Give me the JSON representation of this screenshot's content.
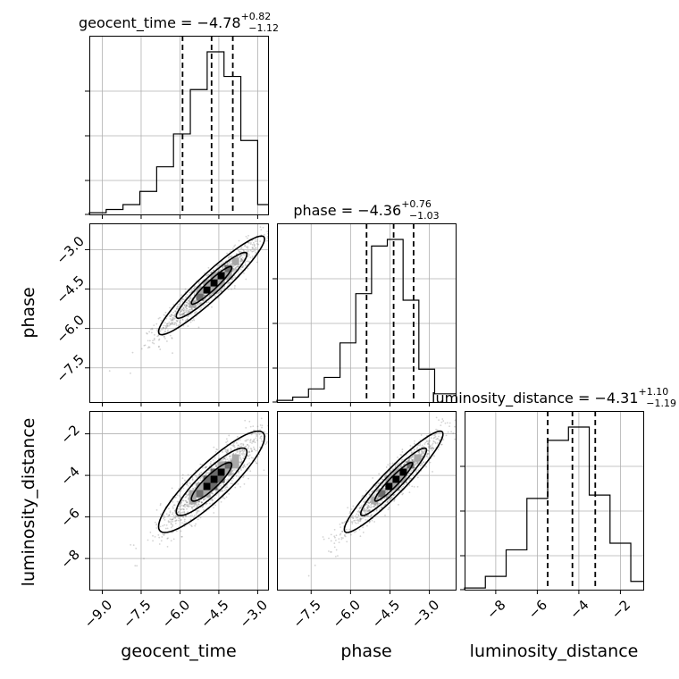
{
  "chart_data": {
    "type": "corner",
    "parameters": [
      "geocent_time",
      "phase",
      "luminosity_distance"
    ],
    "titles": [
      {
        "name": "geocent_time",
        "median": "−4.78",
        "plus": "+0.82",
        "minus": "−1.12"
      },
      {
        "name": "phase",
        "median": "−4.36",
        "plus": "+0.76",
        "minus": "−1.03"
      },
      {
        "name": "luminosity_distance",
        "median": "−4.31",
        "plus": "+1.10",
        "minus": "−1.19"
      }
    ],
    "ranges": [
      [
        -9.5,
        -2.6
      ],
      [
        -8.8,
        -2.0
      ],
      [
        -9.5,
        -0.9
      ]
    ],
    "ticks": [
      [
        -9.0,
        -7.5,
        -6.0,
        -4.5,
        -3.0
      ],
      [
        -7.5,
        -6.0,
        -4.5,
        -3.0
      ],
      [
        -8,
        -6,
        -4,
        -2
      ]
    ],
    "tick_labels": [
      [
        "−9.0",
        "−7.5",
        "−6.0",
        "−4.5",
        "−3.0"
      ],
      [
        "−7.5",
        "−6.0",
        "−4.5",
        "−3.0"
      ],
      [
        "−8",
        "−6",
        "−4",
        "−2"
      ]
    ],
    "quantiles": [
      [
        -5.9,
        -4.78,
        -3.96
      ],
      [
        -5.39,
        -4.36,
        -3.6
      ],
      [
        -5.5,
        -4.31,
        -3.21
      ]
    ],
    "histograms": [
      {
        "parameter": "geocent_time",
        "bin_edges": [
          -9.5,
          -8.85,
          -8.2,
          -7.55,
          -6.9,
          -6.25,
          -5.6,
          -4.95,
          -4.3,
          -3.65,
          -3.0,
          -2.6
        ],
        "counts": [
          0.01,
          0.03,
          0.06,
          0.14,
          0.29,
          0.49,
          0.76,
          0.99,
          0.84,
          0.45,
          0.06
        ]
      },
      {
        "parameter": "phase",
        "bin_edges": [
          -8.8,
          -8.2,
          -7.6,
          -7.0,
          -6.4,
          -5.8,
          -5.2,
          -4.6,
          -4.0,
          -3.4,
          -2.8,
          -2.0
        ],
        "counts": [
          0.01,
          0.03,
          0.08,
          0.15,
          0.36,
          0.66,
          0.95,
          0.99,
          0.62,
          0.2,
          0.05
        ]
      },
      {
        "parameter": "luminosity_distance",
        "bin_edges": [
          -9.5,
          -8.5,
          -7.5,
          -6.5,
          -5.5,
          -4.5,
          -3.5,
          -2.5,
          -1.5,
          -0.9
        ],
        "counts": [
          0.01,
          0.08,
          0.24,
          0.55,
          0.9,
          0.98,
          0.57,
          0.28,
          0.05
        ]
      }
    ],
    "scatter_2d": [
      {
        "x": "geocent_time",
        "y": "phase",
        "center": [
          -4.78,
          -4.36
        ],
        "cov": [
          [
            0.95,
            0.82
          ],
          [
            0.82,
            0.8
          ]
        ],
        "n_points": 1300
      },
      {
        "x": "geocent_time",
        "y": "luminosity_distance",
        "center": [
          -4.78,
          -4.31
        ],
        "cov": [
          [
            0.95,
            1.0
          ],
          [
            1.0,
            1.35
          ]
        ],
        "n_points": 1300
      },
      {
        "x": "phase",
        "y": "luminosity_distance",
        "center": [
          -4.36,
          -4.31
        ],
        "cov": [
          [
            0.8,
            0.98
          ],
          [
            0.98,
            1.35
          ]
        ],
        "n_points": 1300
      }
    ],
    "contour_levels_sigma": [
      0.8,
      1.4,
      2.1
    ],
    "colors": {
      "hist": "#000000",
      "points": "#808080",
      "contour": "#000000",
      "grid": "#b0b0b0"
    }
  }
}
